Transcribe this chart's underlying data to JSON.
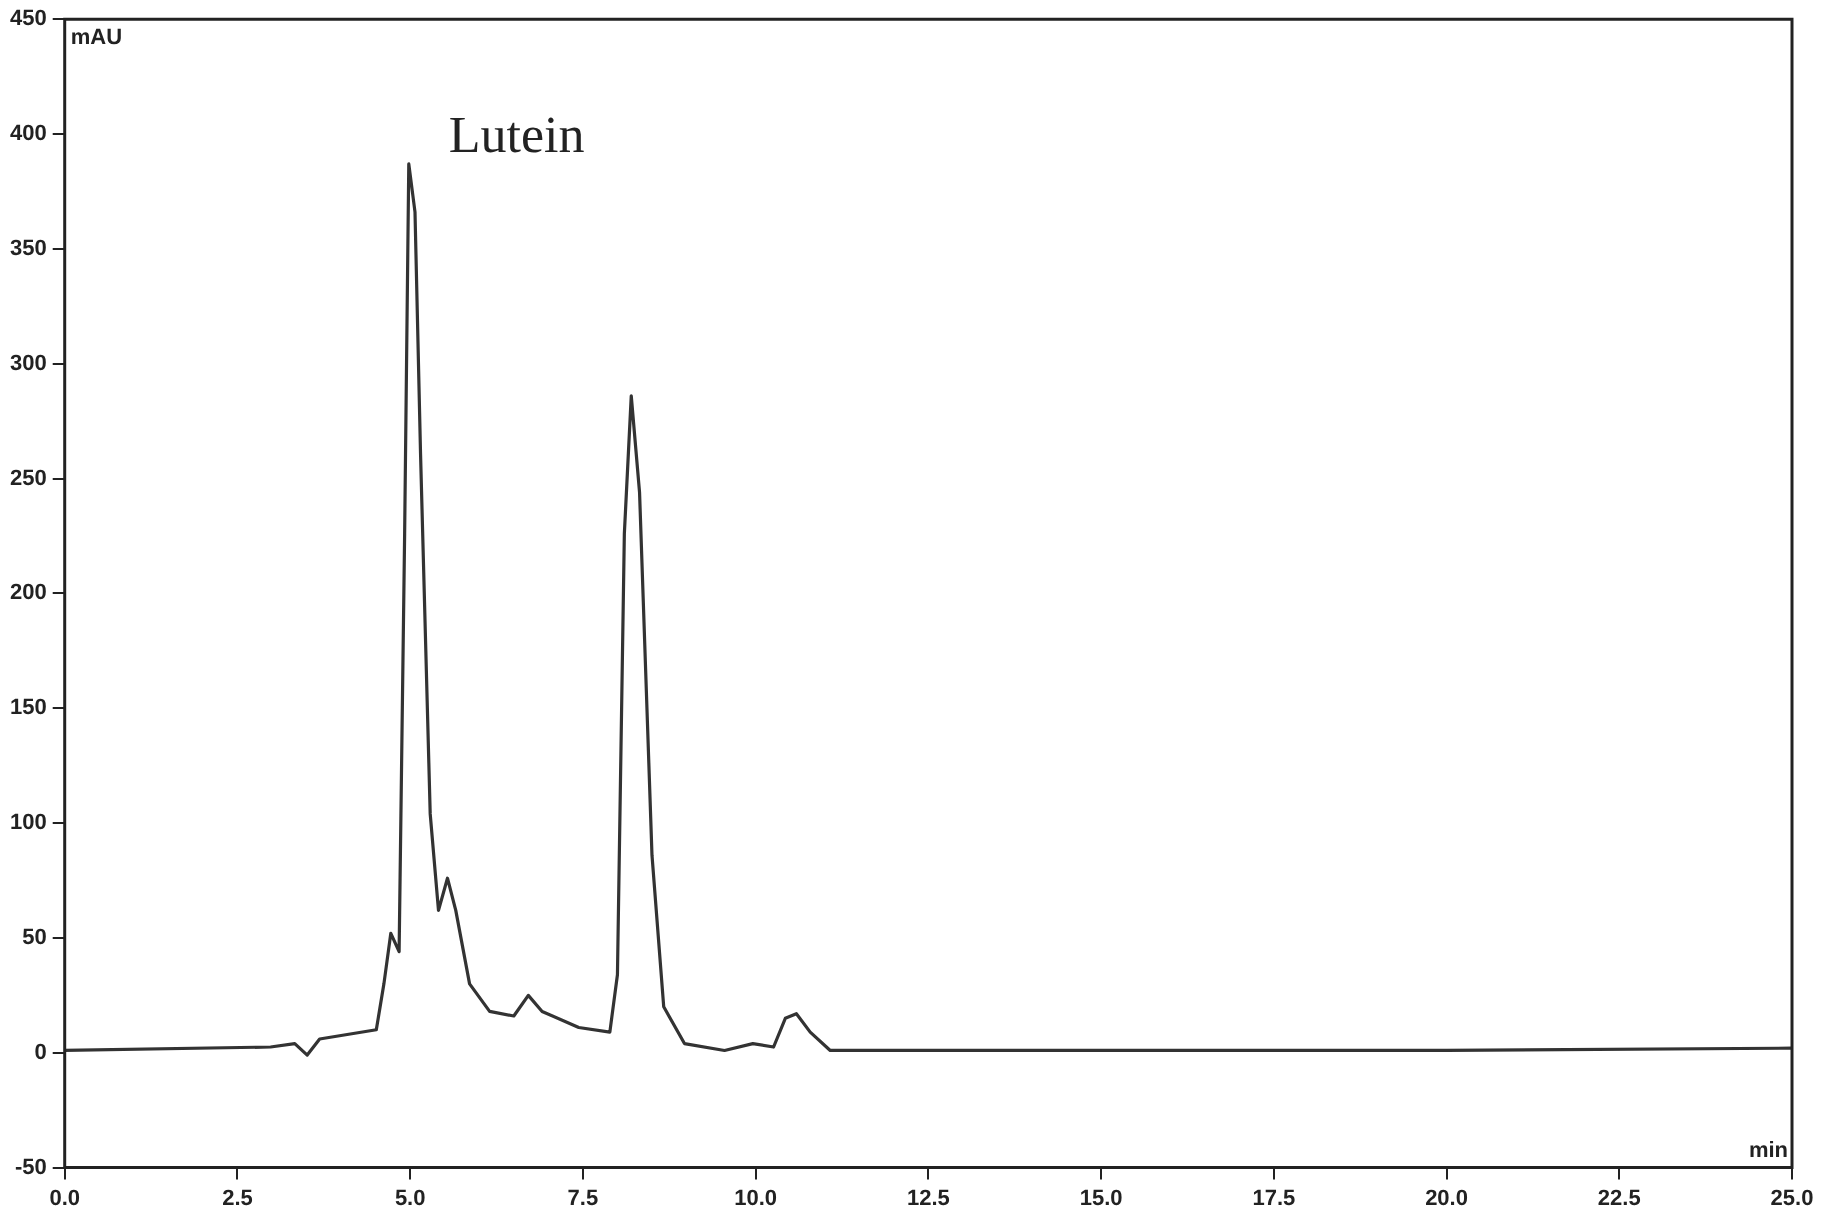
{
  "chart_data": {
    "type": "line",
    "xlabel": "min",
    "ylabel": "mAU",
    "x": [
      0,
      2.98,
      3.33,
      3.51,
      3.69,
      4.51,
      4.62,
      4.72,
      4.84,
      4.92,
      4.98,
      5.07,
      5.15,
      5.29,
      5.41,
      5.54,
      5.66,
      5.86,
      6.15,
      6.5,
      6.71,
      6.91,
      7.44,
      7.89,
      8.0,
      8.1,
      8.2,
      8.32,
      8.5,
      8.67,
      8.97,
      9.55,
      9.96,
      10.26,
      10.43,
      10.59,
      10.79,
      11.08,
      15,
      20,
      25
    ],
    "series": [
      {
        "color": "#333333",
        "values": [
          1,
          2.5,
          4,
          -1,
          6,
          10,
          30,
          52,
          44,
          226,
          387,
          366,
          261,
          104,
          62,
          76,
          62,
          30,
          18,
          16,
          25,
          18,
          11,
          9,
          34,
          226,
          286,
          244,
          86,
          20,
          4,
          1,
          4,
          2.5,
          15,
          17,
          9,
          1,
          1,
          1,
          2
        ]
      }
    ],
    "xlim": [
      0,
      25
    ],
    "ylim": [
      -50,
      450
    ],
    "xticks": [
      {
        "value": 0,
        "label": "0.0"
      },
      {
        "value": 2.5,
        "label": "2.5"
      },
      {
        "value": 5,
        "label": "5.0"
      },
      {
        "value": 7.5,
        "label": "7.5"
      },
      {
        "value": 10,
        "label": "10.0"
      },
      {
        "value": 12.5,
        "label": "12.5"
      },
      {
        "value": 15,
        "label": "15.0"
      },
      {
        "value": 17.5,
        "label": "17.5"
      },
      {
        "value": 20,
        "label": "20.0"
      },
      {
        "value": 22.5,
        "label": "22.5"
      },
      {
        "value": 25,
        "label": "25.0"
      }
    ],
    "yticks": [
      -50,
      0,
      50,
      100,
      150,
      200,
      250,
      300,
      350,
      400,
      450
    ],
    "annotations": [
      {
        "text": "Lutein",
        "x": 4.98,
        "y": 387
      }
    ],
    "grid": false,
    "legend": false,
    "marker": "none",
    "line_style": "solid"
  }
}
